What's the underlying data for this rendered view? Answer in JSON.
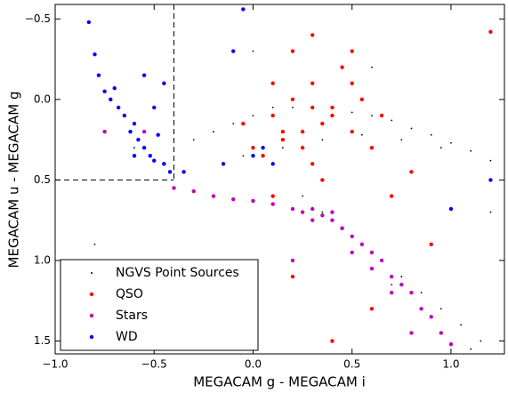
{
  "chart_data": {
    "type": "scatter",
    "xlabel": "MEGACAM g - MEGACAM i",
    "ylabel": "MEGACAM u - MEGACAM g",
    "xlim": [
      -1.0,
      1.27
    ],
    "ylim": [
      1.58,
      -0.59
    ],
    "xticks": [
      {
        "value": -1.0,
        "label": "−1.0"
      },
      {
        "value": -0.5,
        "label": "−0.5"
      },
      {
        "value": 0.0,
        "label": "0.0"
      },
      {
        "value": 0.5,
        "label": "0.5"
      },
      {
        "value": 1.0,
        "label": "1.0"
      }
    ],
    "yticks": [
      {
        "value": -0.5,
        "label": "−0.5"
      },
      {
        "value": 0.0,
        "label": "0.0"
      },
      {
        "value": 0.5,
        "label": "0.5"
      },
      {
        "value": 1.0,
        "label": "1.0"
      },
      {
        "value": 1.5,
        "label": "1.5"
      }
    ],
    "reference_lines": {
      "x": -0.4,
      "y": 0.5
    },
    "legend": "lower left",
    "series": [
      {
        "name": "NGVS Point Sources",
        "color": "#000000",
        "x": [
          -0.3,
          -0.2,
          -0.1,
          0.0,
          0.1,
          0.2,
          0.3,
          0.4,
          0.5,
          0.6,
          0.7,
          0.8,
          0.9,
          1.0,
          1.1,
          1.2,
          -0.05,
          0.15,
          0.35,
          0.55,
          0.75,
          0.95,
          0.25,
          0.35,
          0.45,
          0.55,
          0.65,
          0.75,
          0.85,
          0.95,
          1.05,
          1.15,
          0.3,
          0.5,
          0.7,
          0.9,
          1.1,
          -0.6,
          -0.8,
          0.0,
          0.6,
          1.2
        ],
        "values": [
          0.25,
          0.2,
          0.15,
          0.1,
          0.05,
          0.05,
          0.05,
          0.05,
          0.08,
          0.1,
          0.13,
          0.18,
          0.22,
          0.27,
          0.32,
          0.38,
          0.35,
          0.3,
          0.25,
          0.22,
          0.25,
          0.3,
          0.6,
          0.7,
          0.8,
          0.9,
          1.0,
          1.1,
          1.2,
          1.3,
          1.4,
          1.5,
          0.75,
          0.95,
          1.15,
          1.35,
          1.55,
          0.3,
          0.9,
          -0.3,
          -0.2,
          0.7
        ]
      },
      {
        "name": "QSO",
        "color": "#ff0000",
        "x": [
          0.1,
          0.2,
          0.3,
          0.4,
          0.5,
          0.15,
          0.25,
          0.35,
          0.45,
          0.05,
          0.2,
          0.3,
          0.4,
          0.55,
          0.6,
          0.1,
          0.3,
          0.5,
          0.25,
          0.35,
          0.0,
          0.7,
          0.8,
          0.45,
          0.2,
          0.6,
          1.2,
          0.1,
          0.4,
          0.9,
          0.3,
          0.5,
          -0.05,
          0.15,
          0.65
        ],
        "values": [
          0.1,
          0.0,
          -0.1,
          0.05,
          0.2,
          0.25,
          0.3,
          0.15,
          -0.2,
          0.35,
          -0.3,
          0.4,
          0.1,
          0.0,
          0.3,
          -0.1,
          -0.4,
          -0.3,
          0.2,
          0.5,
          0.3,
          0.6,
          0.45,
          0.8,
          1.1,
          1.3,
          -0.42,
          0.6,
          1.5,
          0.9,
          0.05,
          -0.1,
          0.15,
          0.2,
          0.1
        ]
      },
      {
        "name": "Stars",
        "color": "#bf00bf",
        "x": [
          -0.4,
          -0.3,
          -0.2,
          -0.1,
          0.0,
          0.1,
          0.2,
          0.25,
          0.3,
          0.35,
          0.4,
          0.45,
          0.5,
          0.55,
          0.6,
          0.65,
          0.7,
          0.75,
          0.8,
          0.85,
          0.9,
          0.95,
          1.0,
          0.3,
          0.4,
          0.5,
          0.6,
          0.7,
          -0.75,
          -0.55,
          -0.45,
          0.2,
          0.8
        ],
        "values": [
          0.55,
          0.57,
          0.6,
          0.62,
          0.63,
          0.65,
          0.68,
          0.7,
          0.68,
          0.72,
          0.75,
          0.8,
          0.85,
          0.9,
          0.95,
          1.0,
          1.1,
          1.15,
          1.2,
          1.3,
          1.35,
          1.45,
          1.52,
          0.75,
          0.7,
          0.95,
          1.05,
          1.2,
          0.2,
          0.2,
          0.4,
          1.0,
          1.45
        ]
      },
      {
        "name": "WD",
        "color": "#0000ff",
        "x": [
          -0.83,
          -0.8,
          -0.78,
          -0.75,
          -0.72,
          -0.7,
          -0.68,
          -0.65,
          -0.62,
          -0.6,
          -0.58,
          -0.55,
          -0.52,
          -0.5,
          -0.48,
          -0.45,
          -0.42,
          -0.55,
          -0.5,
          -0.45,
          -0.05,
          -0.1,
          0.0,
          0.1,
          0.05,
          -0.15,
          1.0,
          1.2,
          -0.35,
          -0.6
        ],
        "values": [
          -0.48,
          -0.28,
          -0.15,
          -0.05,
          0.0,
          -0.07,
          0.05,
          0.1,
          0.2,
          0.15,
          0.25,
          0.3,
          0.35,
          0.38,
          0.22,
          0.4,
          0.45,
          -0.15,
          0.05,
          -0.1,
          -0.56,
          -0.3,
          0.35,
          0.4,
          0.3,
          0.4,
          0.68,
          0.5,
          0.45,
          0.35
        ]
      }
    ]
  }
}
